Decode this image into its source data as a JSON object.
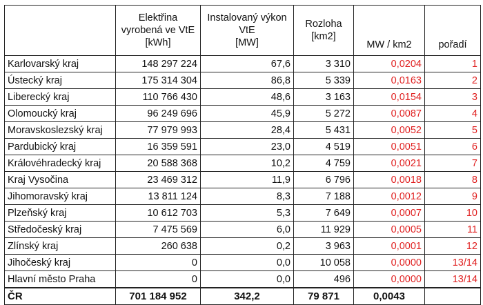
{
  "headers": {
    "col1": [
      "Elektřina",
      "vyrobená ve VtE",
      "[kWh]"
    ],
    "col2": [
      "Instalovaný výkon",
      "VtE",
      "[MW]"
    ],
    "col3": [
      "Rozloha",
      "[km2]"
    ],
    "col4": "MW / km2",
    "col5": "pořadí"
  },
  "rows": [
    {
      "region": "Karlovarský kraj",
      "kwh": "148 297 224",
      "mw": "67,6",
      "km2": "3 310",
      "density": "0,0204",
      "rank": "1"
    },
    {
      "region": "Ústecký kraj",
      "kwh": "175 314 304",
      "mw": "86,8",
      "km2": "5 339",
      "density": "0,0163",
      "rank": "2"
    },
    {
      "region": "Liberecký kraj",
      "kwh": "110 766 430",
      "mw": "48,6",
      "km2": "3 163",
      "density": "0,0154",
      "rank": "3"
    },
    {
      "region": "Olomoucký kraj",
      "kwh": "96 249 696",
      "mw": "45,9",
      "km2": "5 272",
      "density": "0,0087",
      "rank": "4"
    },
    {
      "region": "Moravskoslezský kraj",
      "kwh": "77 979 993",
      "mw": "28,4",
      "km2": "5 431",
      "density": "0,0052",
      "rank": "5"
    },
    {
      "region": "Pardubický kraj",
      "kwh": "16 359 591",
      "mw": "23,0",
      "km2": "4 519",
      "density": "0,0051",
      "rank": "6"
    },
    {
      "region": "Královéhradecký kraj",
      "kwh": "20 588 368",
      "mw": "10,2",
      "km2": "4 759",
      "density": "0,0021",
      "rank": "7"
    },
    {
      "region": "Kraj Vysočina",
      "kwh": "23 469 312",
      "mw": "11,9",
      "km2": "6 796",
      "density": "0,0018",
      "rank": "8"
    },
    {
      "region": "Jihomoravský kraj",
      "kwh": "13 811 124",
      "mw": "8,3",
      "km2": "7 188",
      "density": "0,0012",
      "rank": "9"
    },
    {
      "region": "Plzeňský kraj",
      "kwh": "10 612 703",
      "mw": "5,3",
      "km2": "7 649",
      "density": "0,0007",
      "rank": "10"
    },
    {
      "region": "Středočeský kraj",
      "kwh": "7 475 569",
      "mw": "6,0",
      "km2": "11 929",
      "density": "0,0005",
      "rank": "11"
    },
    {
      "region": "Zlínský kraj",
      "kwh": "260 638",
      "mw": "0,2",
      "km2": "3 963",
      "density": "0,0001",
      "rank": "12"
    },
    {
      "region": "Jihočeský kraj",
      "kwh": "0",
      "mw": "0,0",
      "km2": "10 058",
      "density": "0,0000",
      "rank": "13/14"
    },
    {
      "region": "Hlavní město Praha",
      "kwh": "0",
      "mw": "0,0",
      "km2": "496",
      "density": "0,0000",
      "rank": "13/14"
    }
  ],
  "total": {
    "region": "ČR",
    "kwh": "701 184 952",
    "mw": "342,2",
    "km2": "79 871",
    "density": "0,0043",
    "rank": ""
  },
  "colors": {
    "highlight": "#e02020"
  }
}
